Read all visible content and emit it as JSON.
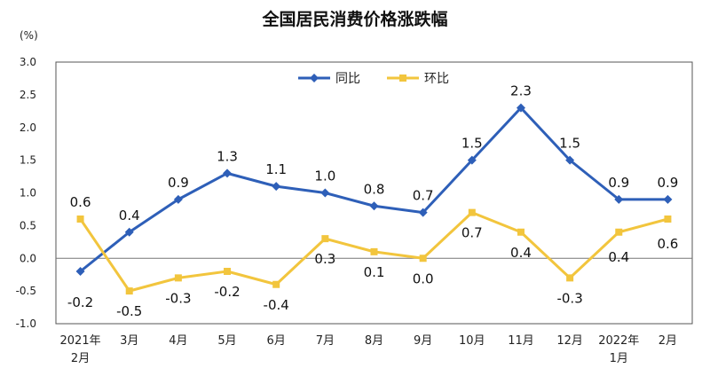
{
  "chart_data": {
    "type": "line",
    "title": "全国居民消费价格涨跌幅",
    "ylabel": "(%)",
    "ylim": [
      -1.0,
      3.0
    ],
    "yticks": [
      "3.0",
      "2.5",
      "2.0",
      "1.5",
      "1.0",
      "0.5",
      "0.0",
      "-0.5",
      "-1.0"
    ],
    "yticks_values": [
      3.0,
      2.5,
      2.0,
      1.5,
      1.0,
      0.5,
      0.0,
      -0.5,
      -1.0
    ],
    "categories": [
      [
        "2021年",
        "2月"
      ],
      [
        "3月"
      ],
      [
        "4月"
      ],
      [
        "5月"
      ],
      [
        "6月"
      ],
      [
        "7月"
      ],
      [
        "8月"
      ],
      [
        "9月"
      ],
      [
        "10月"
      ],
      [
        "11月"
      ],
      [
        "12月"
      ],
      [
        "2022年",
        "1月"
      ],
      [
        "2月"
      ]
    ],
    "legend_position": "top-center",
    "grid": false,
    "series": [
      {
        "name": "同比",
        "color": "#2e5fb8",
        "values": [
          -0.2,
          0.4,
          0.9,
          1.3,
          1.1,
          1.0,
          0.8,
          0.7,
          1.5,
          2.3,
          1.5,
          0.9,
          0.9
        ],
        "labels": [
          "-0.2",
          "0.4",
          "0.9",
          "1.3",
          "1.1",
          "1.0",
          "0.8",
          "0.7",
          "1.5",
          "2.3",
          "1.5",
          "0.9",
          "0.9"
        ]
      },
      {
        "name": "环比",
        "color": "#f2c53d",
        "values": [
          0.6,
          -0.5,
          -0.3,
          -0.2,
          -0.4,
          0.3,
          0.1,
          0.0,
          0.7,
          0.4,
          -0.3,
          0.4,
          0.6
        ],
        "labels": [
          "0.6",
          "-0.5",
          "-0.3",
          "-0.2",
          "-0.4",
          "0.3",
          "0.1",
          "0.0",
          "0.7",
          "0.4",
          "-0.3",
          "0.4",
          "0.6"
        ]
      }
    ]
  }
}
